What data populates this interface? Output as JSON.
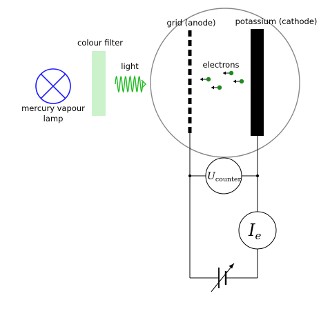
{
  "labels": {
    "lamp": [
      "mercury vapour",
      "lamp"
    ],
    "filter": "colour filter",
    "light": "light",
    "grid": "grid (anode)",
    "cathode": "potassium (cathode)",
    "electrons": "electrons",
    "voltmeter_main": "U",
    "voltmeter_sub": "counter",
    "ammeter_main": "I",
    "ammeter_sub": "e"
  },
  "colors": {
    "lamp": "#1a1aff",
    "filter": "#ccf2cc",
    "light_wave": "#22bb22",
    "electron": "#1f8a1f",
    "tube_outline": "#888888",
    "wire": "#000000"
  },
  "icons": {
    "lamp": "lamp-symbol-icon",
    "variable_source": "variable-voltage-source-icon"
  }
}
